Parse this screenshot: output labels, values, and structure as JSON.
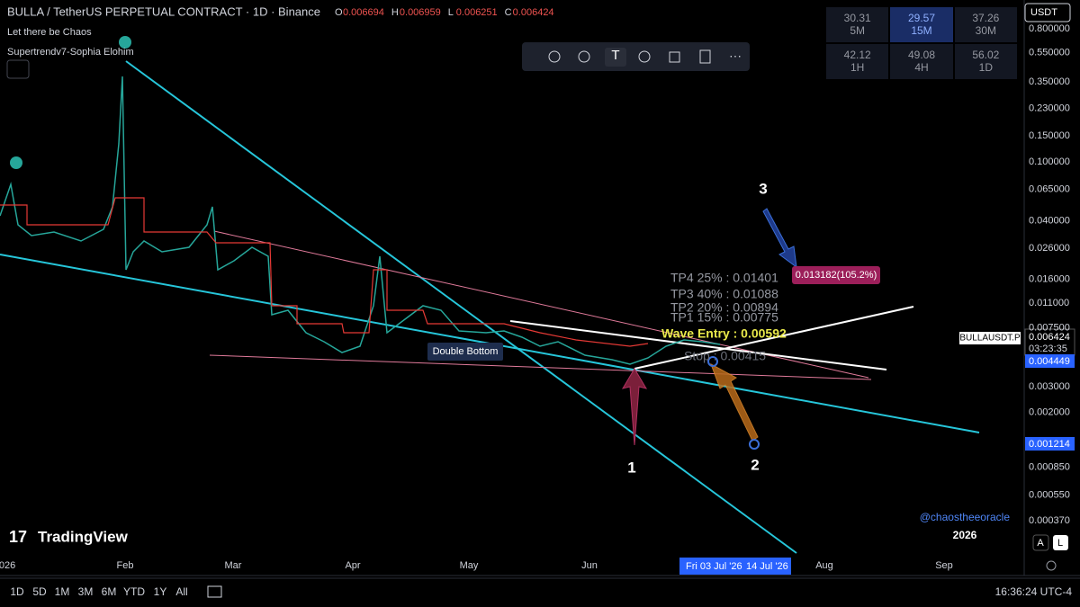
{
  "header": {
    "symbol": "BULLA / TetherUS PERPETUAL CONTRACT · 1D · Binance",
    "ohlc": [
      {
        "key": "O",
        "value": "0.006694"
      },
      {
        "key": "H",
        "value": "0.006959"
      },
      {
        "key": "L",
        "value": "0.006251"
      },
      {
        "key": "C",
        "value": "0.006424"
      }
    ]
  },
  "indicators": [
    "Let there be Chaos",
    "Supertrendv7-Sophia Elohim"
  ],
  "rsi_table": [
    {
      "value": "30.31",
      "tf": "5M"
    },
    {
      "value": "29.57",
      "tf": "15M"
    },
    {
      "value": "37.26",
      "tf": "30M"
    },
    {
      "value": "42.12",
      "tf": "1H"
    },
    {
      "value": "49.08",
      "tf": "4H"
    },
    {
      "value": "56.02",
      "tf": "1D"
    }
  ],
  "currency": "USDT",
  "price_axis": [
    "0.800000",
    "0.550000",
    "0.350000",
    "0.230000",
    "0.150000",
    "0.100000",
    "0.065000",
    "0.040000",
    "0.026000",
    "0.016000",
    "0.011000",
    "0.007500",
    "0.003000",
    "0.002000",
    "0.000850",
    "0.000550",
    "0.000370"
  ],
  "price_tags": {
    "symbol": "BULLAUSDT.P",
    "last": "0.006424",
    "countdown": "03:23:35",
    "upper": "0.004449",
    "lower": "0.001214"
  },
  "annotations": {
    "tp4": "TP4 25% : 0.01401",
    "tp3": "TP3 40% : 0.01088",
    "tp2": "TP2 20% : 0.00894",
    "tp1": "TP1 15% : 0.00775",
    "entry": "Wave Entry : 0.00592",
    "stop": "Stop : 0.00415",
    "pattern": "Double Bottom",
    "target": "0.013182(105.2%)",
    "wave1": "1",
    "wave2": "2",
    "wave3": "3",
    "author": "@chaostheeoracle"
  },
  "time_axis": [
    "026",
    "Feb",
    "Mar",
    "Apr",
    "May",
    "Jun",
    "Aug",
    "Sep"
  ],
  "time_cursor": [
    "Fri 03 Jul '26",
    "14 Jul '26"
  ],
  "year": "2026",
  "logo": "TradingView",
  "scale_buttons": [
    "A",
    "L"
  ],
  "ranges": [
    "1D",
    "5D",
    "1M",
    "3M",
    "6M",
    "YTD",
    "1Y",
    "All"
  ],
  "clock": "16:36:24 UTC-4"
}
